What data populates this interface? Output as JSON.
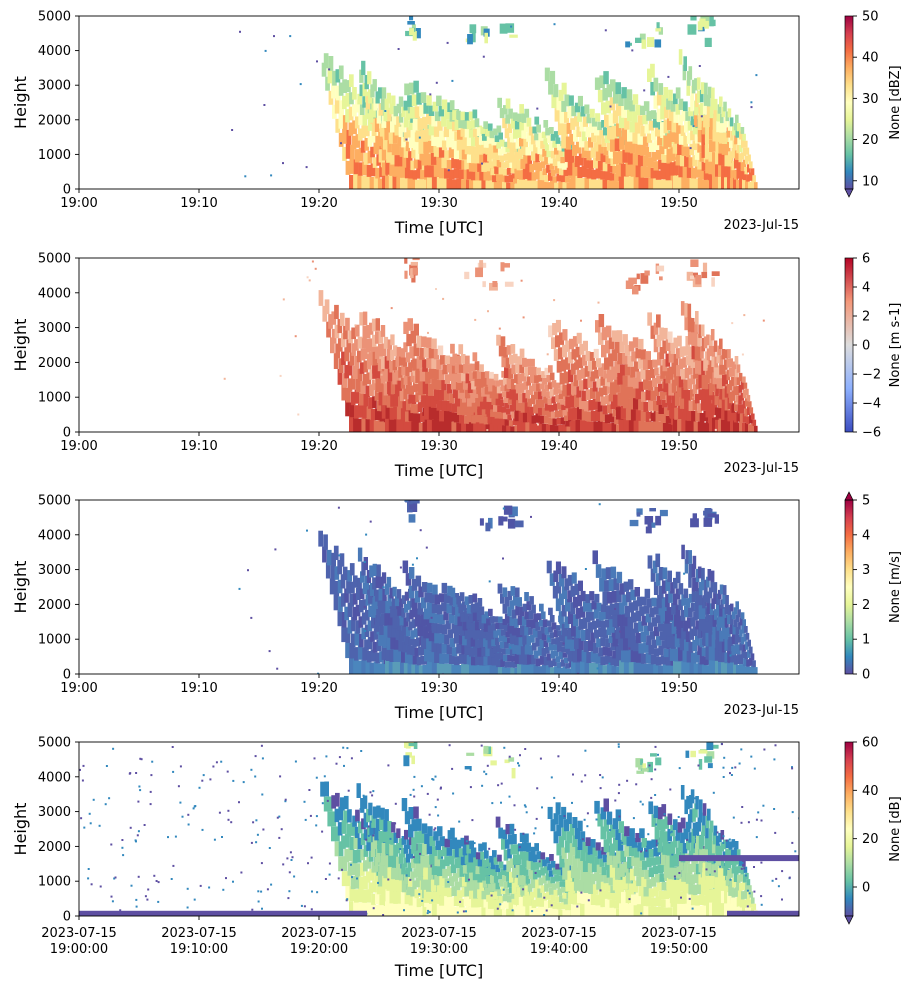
{
  "figure": {
    "date_label": "2023-Jul-15"
  },
  "chart_data": [
    {
      "type": "heatmap",
      "ylabel": "Height",
      "xlabel": "Time [UTC]",
      "xticks": [
        "19:00",
        "19:10",
        "19:20",
        "19:30",
        "19:40",
        "19:50"
      ],
      "yticks": [
        "0",
        "1000",
        "2000",
        "3000",
        "4000",
        "5000"
      ],
      "ylim": [
        0,
        5000
      ],
      "xlim_minutes": [
        0,
        60
      ],
      "colorbar": {
        "label": "None [dBZ]",
        "ticks": [
          "10",
          "20",
          "30",
          "40",
          "50"
        ],
        "range": [
          8,
          50
        ],
        "colormap": "Spectral_r",
        "extend": "min"
      }
    },
    {
      "type": "heatmap",
      "ylabel": "Height",
      "xlabel": "Time [UTC]",
      "xticks": [
        "19:00",
        "19:10",
        "19:20",
        "19:30",
        "19:40",
        "19:50"
      ],
      "yticks": [
        "0",
        "1000",
        "2000",
        "3000",
        "4000",
        "5000"
      ],
      "ylim": [
        0,
        5000
      ],
      "xlim_minutes": [
        0,
        60
      ],
      "colorbar": {
        "label": "None [m s-1]",
        "ticks": [
          "6",
          "4",
          "2",
          "0",
          "−2",
          "−4",
          "−6"
        ],
        "range": [
          -6,
          6
        ],
        "colormap": "coolwarm"
      }
    },
    {
      "type": "heatmap",
      "ylabel": "Height",
      "xlabel": "Time [UTC]",
      "xticks": [
        "19:00",
        "19:10",
        "19:20",
        "19:30",
        "19:40",
        "19:50"
      ],
      "yticks": [
        "0",
        "1000",
        "2000",
        "3000",
        "4000",
        "5000"
      ],
      "ylim": [
        0,
        5000
      ],
      "xlim_minutes": [
        0,
        60
      ],
      "colorbar": {
        "label": "None [m/s]",
        "ticks": [
          "0",
          "1",
          "2",
          "3",
          "4",
          "5"
        ],
        "range": [
          0,
          5
        ],
        "colormap": "Spectral_r",
        "extend": "max"
      }
    },
    {
      "type": "heatmap",
      "ylabel": "Height",
      "xlabel": "Time [UTC]",
      "xticks": [
        "2023-07-15|19:00:00",
        "2023-07-15|19:10:00",
        "2023-07-15|19:20:00",
        "2023-07-15|19:30:00",
        "2023-07-15|19:40:00",
        "2023-07-15|19:50:00"
      ],
      "yticks": [
        "0",
        "1000",
        "2000",
        "3000",
        "4000",
        "5000"
      ],
      "ylim": [
        0,
        5000
      ],
      "xlim_minutes": [
        0,
        60
      ],
      "colorbar": {
        "label": "None [dB]",
        "ticks": [
          "0",
          "20",
          "40",
          "60"
        ],
        "range": [
          -12,
          60
        ],
        "colormap": "Spectral_r",
        "extend": "min"
      }
    }
  ]
}
